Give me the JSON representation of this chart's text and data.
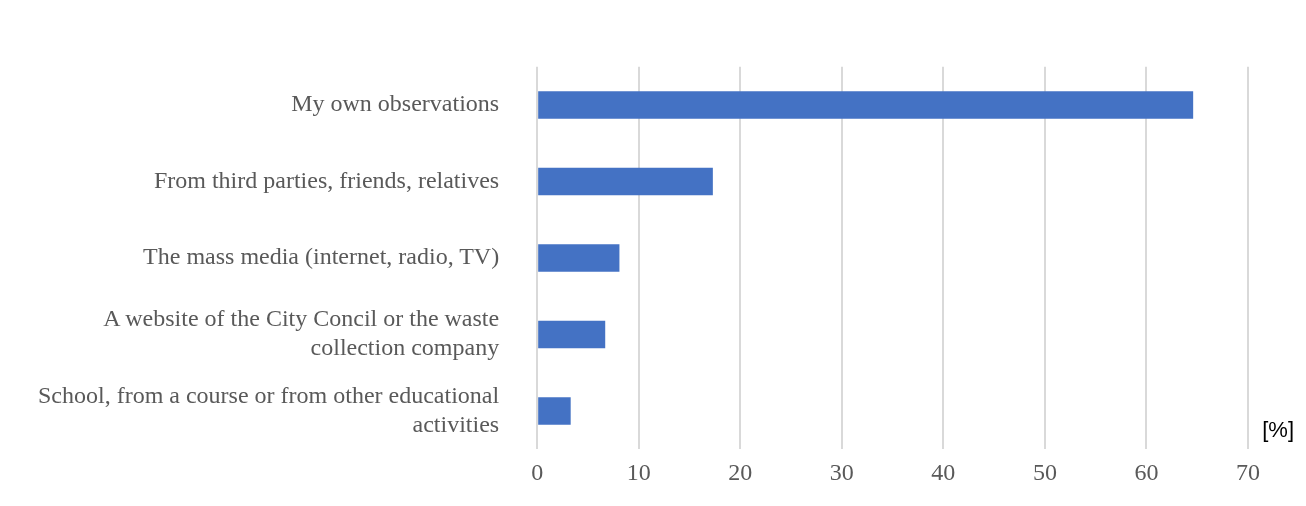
{
  "chart_data": {
    "type": "bar",
    "orientation": "horizontal",
    "xlabel": "[%]",
    "categories": [
      "My own observations",
      "From third parties, friends, relatives",
      "The mass media (internet, radio, TV)",
      "A website of the City Concil or the waste collection company",
      "School, from a course or from other educational activities"
    ],
    "values": [
      64.6,
      17.3,
      8.1,
      6.7,
      3.3
    ],
    "color": "#4472c4",
    "xlim": [
      0,
      70
    ],
    "xticks": [
      0,
      10,
      20,
      30,
      40,
      50,
      60,
      70
    ],
    "grid": "x"
  }
}
